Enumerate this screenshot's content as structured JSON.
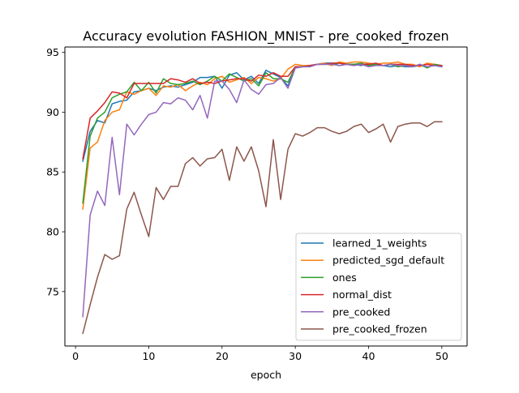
{
  "chart_data": {
    "type": "line",
    "title": "Accuracy evolution FASHION_MNIST - pre_cooked_frozen",
    "xlabel": "epoch",
    "ylabel": "",
    "xlim": [
      -1.45,
      53.45
    ],
    "ylim": [
      70.45,
      95.45
    ],
    "x_ticks": [
      0,
      10,
      20,
      30,
      40,
      50
    ],
    "y_ticks": [
      75,
      80,
      85,
      90,
      95
    ],
    "grid": false,
    "legend_position": "lower-right",
    "x": [
      1,
      2,
      3,
      4,
      5,
      6,
      7,
      8,
      9,
      10,
      11,
      12,
      13,
      14,
      15,
      16,
      17,
      18,
      19,
      20,
      21,
      22,
      23,
      24,
      25,
      26,
      27,
      28,
      29,
      30,
      31,
      32,
      33,
      34,
      35,
      36,
      37,
      38,
      39,
      40,
      41,
      42,
      43,
      44,
      45,
      46,
      47,
      48,
      49,
      50
    ],
    "series": [
      {
        "name": "learned_1_weights",
        "color": "#1f77b4",
        "values": [
          85.9,
          88.4,
          89.3,
          89.1,
          90.7,
          90.9,
          91.0,
          91.7,
          91.8,
          92.0,
          91.8,
          92.1,
          92.2,
          92.1,
          92.3,
          92.5,
          92.9,
          92.9,
          93.0,
          92.0,
          93.1,
          93.3,
          92.7,
          93.0,
          92.4,
          93.5,
          93.2,
          92.9,
          92.2,
          93.7,
          93.8,
          93.9,
          94.0,
          94.1,
          94.1,
          93.9,
          94.0,
          94.0,
          93.9,
          94.1,
          94.0,
          93.9,
          93.8,
          93.9,
          93.8,
          93.8,
          93.9,
          93.8,
          93.9,
          93.8
        ]
      },
      {
        "name": "predicted_sgd_default",
        "color": "#ff7f0e",
        "values": [
          81.9,
          87.0,
          87.5,
          89.3,
          90.0,
          90.2,
          91.7,
          91.5,
          91.8,
          92.0,
          91.4,
          92.2,
          92.1,
          92.3,
          91.8,
          92.2,
          92.5,
          92.3,
          92.8,
          93.0,
          92.5,
          92.7,
          92.9,
          92.4,
          92.9,
          92.8,
          92.6,
          92.8,
          93.6,
          94.0,
          93.9,
          93.9,
          94.0,
          94.1,
          93.9,
          94.2,
          94.1,
          94.2,
          94.2,
          94.1,
          94.0,
          94.1,
          94.1,
          94.2,
          94.0,
          94.0,
          93.8,
          94.1,
          94.0,
          93.9
        ]
      },
      {
        "name": "ones",
        "color": "#2ca02c",
        "values": [
          82.4,
          88.0,
          89.5,
          90.0,
          91.2,
          91.5,
          91.7,
          92.5,
          91.8,
          92.5,
          91.6,
          92.8,
          92.4,
          92.3,
          92.4,
          92.6,
          92.3,
          92.6,
          93.0,
          92.6,
          93.2,
          92.9,
          92.6,
          92.8,
          92.2,
          93.3,
          92.8,
          92.8,
          92.5,
          93.8,
          93.8,
          93.9,
          94.0,
          94.0,
          94.0,
          94.1,
          94.0,
          94.0,
          94.1,
          93.9,
          94.0,
          93.9,
          94.0,
          93.8,
          93.9,
          93.8,
          94.0,
          93.7,
          94.0,
          93.9
        ]
      },
      {
        "name": "normal_dist",
        "color": "#d62728",
        "values": [
          86.1,
          89.5,
          90.1,
          90.8,
          91.7,
          91.6,
          91.2,
          92.4,
          92.4,
          92.4,
          92.4,
          92.4,
          92.8,
          92.7,
          92.5,
          92.8,
          92.4,
          92.5,
          92.4,
          92.6,
          92.7,
          92.8,
          92.8,
          92.6,
          93.1,
          93.0,
          93.3,
          93.0,
          93.0,
          93.8,
          93.8,
          93.9,
          94.0,
          94.0,
          94.1,
          94.1,
          94.0,
          93.9,
          94.0,
          94.0,
          94.1,
          93.9,
          94.0,
          94.0,
          94.0,
          93.9,
          93.9,
          94.0,
          93.9,
          93.9
        ]
      },
      {
        "name": "pre_cooked",
        "color": "#9467bd",
        "values": [
          72.9,
          81.4,
          83.4,
          82.2,
          87.9,
          83.1,
          89.0,
          88.1,
          89.0,
          89.8,
          90.0,
          90.8,
          90.7,
          91.2,
          91.0,
          90.2,
          91.4,
          89.5,
          92.6,
          92.6,
          91.9,
          90.8,
          92.7,
          91.9,
          91.5,
          92.3,
          92.4,
          92.9,
          92.0,
          93.7,
          93.8,
          93.8,
          94.0,
          94.0,
          94.0,
          93.9,
          94.0,
          93.9,
          94.0,
          93.8,
          93.9,
          93.9,
          94.0,
          93.9,
          93.9,
          93.8,
          94.0,
          93.8,
          93.9,
          93.8
        ]
      },
      {
        "name": "pre_cooked_frozen",
        "color": "#8c564b",
        "values": [
          71.5,
          73.9,
          76.2,
          78.1,
          77.7,
          78.0,
          81.9,
          83.3,
          81.4,
          79.6,
          83.7,
          82.7,
          83.8,
          83.8,
          85.7,
          86.2,
          85.5,
          86.1,
          86.2,
          86.9,
          84.3,
          87.1,
          85.9,
          87.1,
          85.1,
          82.1,
          87.7,
          82.7,
          86.9,
          88.2,
          88.0,
          88.3,
          88.7,
          88.7,
          88.4,
          88.2,
          88.4,
          88.8,
          89.0,
          88.3,
          88.6,
          89.0,
          87.5,
          88.8,
          89.0,
          89.1,
          89.1,
          88.8,
          89.2,
          89.2
        ]
      }
    ]
  }
}
